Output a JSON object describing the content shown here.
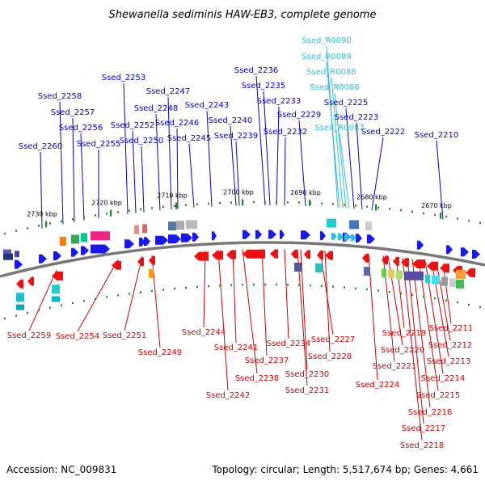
{
  "title": "Shewanella sediminis HAW-EB3, complete genome",
  "accession": "Accession: NC_009831",
  "summary": "Topology: circular; Length: 5,517,674 bp; Genes: 4,661",
  "colors": {
    "forward_label": "#0000cc",
    "rna_label": "#33bbdd",
    "reverse_label": "#cc0000",
    "backbone": "#777777",
    "tick": "#228822"
  },
  "scale_labels": [
    "2730 kbp",
    "2720 kbp",
    "2710 kbp",
    "2700 kbp",
    "2690 kbp",
    "2680 kbp",
    "2670 kbp"
  ],
  "forward_genes": [
    "Ssed_2260",
    "Ssed_2258",
    "Ssed_2257",
    "Ssed_2256",
    "Ssed_2255",
    "Ssed_2253",
    "Ssed_2252",
    "Ssed_2250",
    "Ssed_2248",
    "Ssed_2247",
    "Ssed_2246",
    "Ssed_2245",
    "Ssed_2243",
    "Ssed_2240",
    "Ssed_2239",
    "Ssed_2236",
    "Ssed_2235",
    "Ssed_2233",
    "Ssed_2232",
    "Ssed_2229",
    "Ssed_2225",
    "Ssed_2223",
    "Ssed_2222",
    "Ssed_2210"
  ],
  "rna_genes": [
    "Ssed_R0090",
    "Ssed_R0089",
    "Ssed_R0088",
    "Ssed_R0086",
    "Ssed_R0087"
  ],
  "reverse_genes": [
    "Ssed_2259",
    "Ssed_2254",
    "Ssed_2251",
    "Ssed_2249",
    "Ssed_2244",
    "Ssed_2241",
    "Ssed_2242",
    "Ssed_2237",
    "Ssed_2238",
    "Ssed_2234",
    "Ssed_2230",
    "Ssed_2231",
    "Ssed_2227",
    "Ssed_2228",
    "Ssed_2224",
    "Ssed_2221",
    "Ssed_2220",
    "Ssed_2219",
    "Ssed_2218",
    "Ssed_2217",
    "Ssed_2216",
    "Ssed_2215",
    "Ssed_2214",
    "Ssed_2213",
    "Ssed_2212",
    "Ssed_2211"
  ]
}
